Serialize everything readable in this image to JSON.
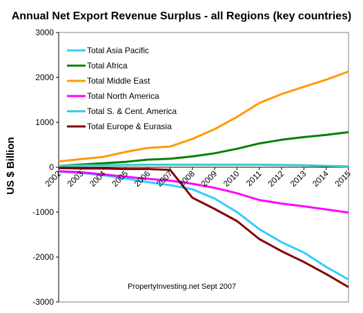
{
  "chart_data": {
    "type": "line",
    "title": "Annual Net Export Revenue Surplus -  all Regions (key countries)",
    "ylabel": "US $ Billion",
    "xlabel": "",
    "ylim": [
      -3000,
      3000
    ],
    "yticks": [
      3000,
      2000,
      1000,
      0,
      -1000,
      -2000,
      -3000
    ],
    "x": [
      "2002",
      "2003",
      "2004",
      "2005",
      "2006",
      "2007",
      "2008",
      "2009",
      "2010",
      "2011",
      "2012",
      "2013",
      "2014",
      "2015"
    ],
    "legend_position": "top-left",
    "grid": false,
    "annotation": "PropertyInvesting.net     Sept 2007",
    "series": [
      {
        "name": "Total Asia Pacific",
        "color": "#33CCFF",
        "values": [
          -100,
          -130,
          -180,
          -250,
          -330,
          -400,
          -490,
          -700,
          -1000,
          -1380,
          -1670,
          -1900,
          -2220,
          -2500
        ]
      },
      {
        "name": "Total Africa",
        "color": "#008000",
        "values": [
          30,
          60,
          90,
          120,
          170,
          190,
          240,
          310,
          410,
          530,
          610,
          670,
          720,
          780
        ]
      },
      {
        "name": "Total Middle East",
        "color": "#FF9900",
        "values": [
          130,
          180,
          230,
          340,
          430,
          460,
          630,
          850,
          1120,
          1430,
          1630,
          1790,
          1950,
          2130
        ]
      },
      {
        "name": "Total North America",
        "color": "#FF00FF",
        "values": [
          -90,
          -110,
          -160,
          -210,
          -260,
          -300,
          -370,
          -460,
          -580,
          -730,
          -810,
          -870,
          -940,
          -1010
        ]
      },
      {
        "name": "Total S. & Cent. America",
        "color": "#33CCCC",
        "values": [
          30,
          40,
          45,
          50,
          55,
          55,
          55,
          55,
          55,
          55,
          50,
          45,
          30,
          20
        ]
      },
      {
        "name": "Total Europe & Eurasia",
        "color": "#800000",
        "values": [
          -20,
          -30,
          -30,
          -40,
          -40,
          -60,
          -680,
          -930,
          -1200,
          -1600,
          -1870,
          -2110,
          -2380,
          -2670
        ]
      }
    ]
  }
}
